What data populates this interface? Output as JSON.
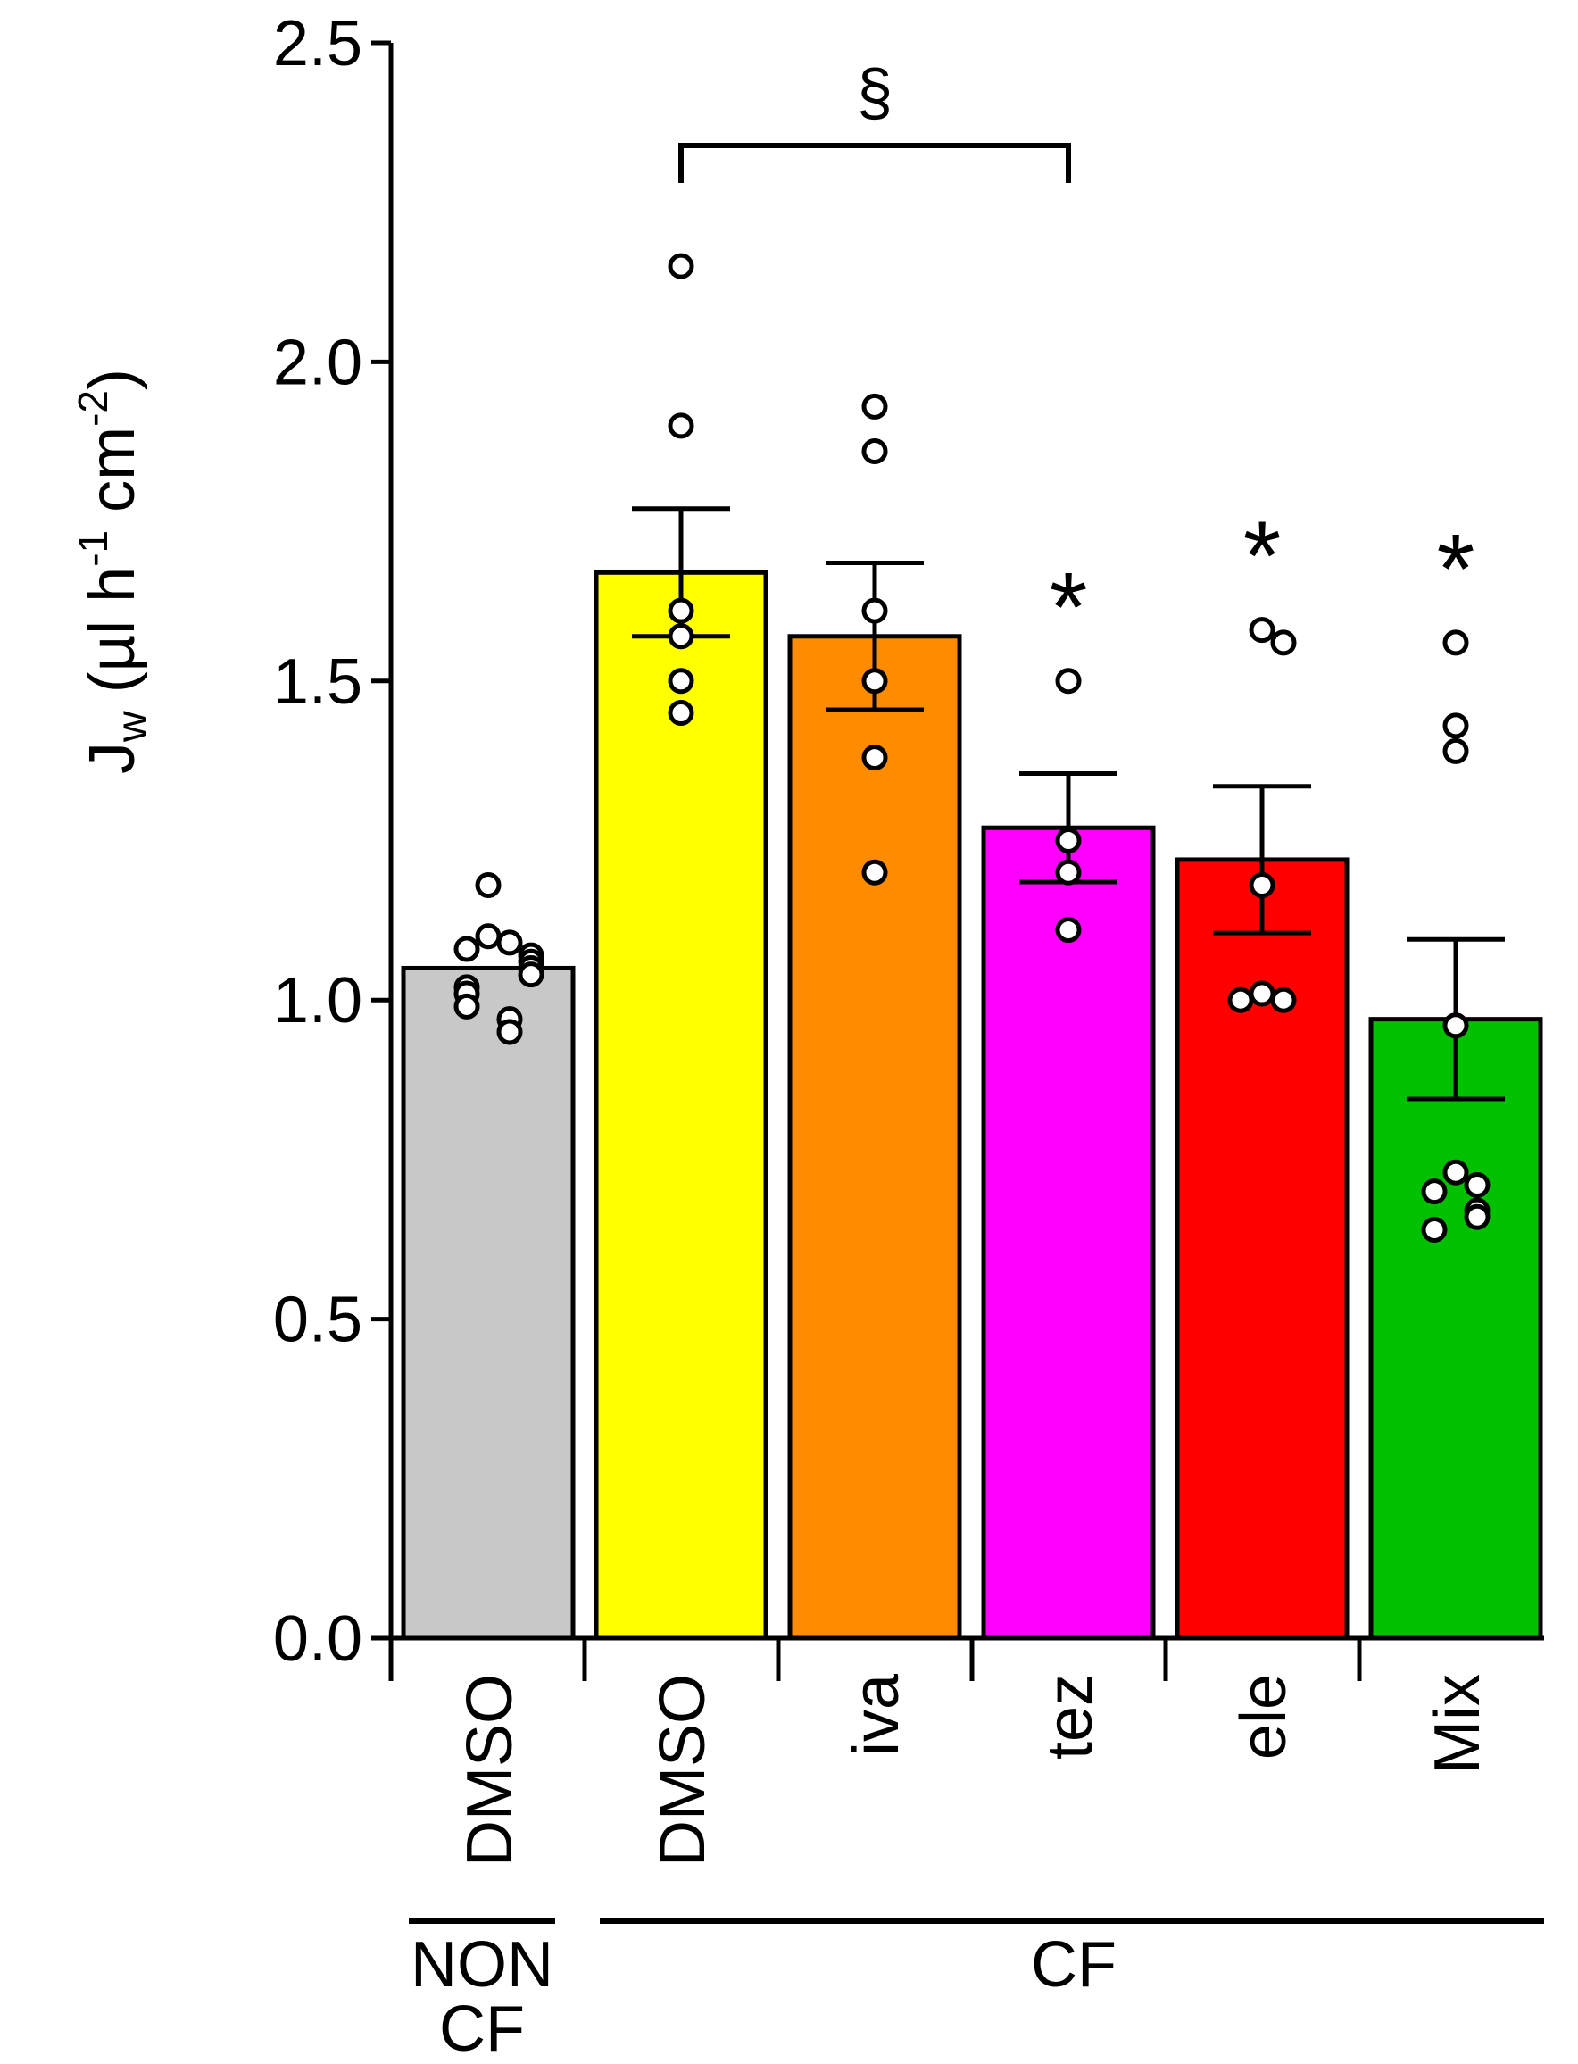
{
  "chart_data": {
    "type": "bar",
    "title": "",
    "ylabel": {
      "main": "J",
      "subscript": "w",
      "unit_open": " (µl h",
      "exp1": "-1",
      "unit_mid": " cm",
      "exp2": "-2",
      "unit_close": ")"
    },
    "ylim": [
      0,
      2.5
    ],
    "yticks": [
      "0.0",
      "0.5",
      "1.0",
      "1.5",
      "2.0",
      "2.5"
    ],
    "categories": [
      "DMSO",
      "DMSO",
      "iva",
      "tez",
      "ele",
      "Mix"
    ],
    "groups": [
      {
        "label_lines": [
          "NON",
          "CF"
        ],
        "categories": [
          0
        ]
      },
      {
        "label_lines": [
          "CF"
        ],
        "categories": [
          1,
          2,
          3,
          4,
          5
        ]
      }
    ],
    "values": [
      1.05,
      1.67,
      1.57,
      1.27,
      1.22,
      0.97
    ],
    "errors": [
      0.0,
      0.1,
      0.115,
      0.085,
      0.115,
      0.125
    ],
    "colors": [
      "#c8c8c8",
      "#ffff00",
      "#ff8c00",
      "#ff00ff",
      "#ff0000",
      "#00c000"
    ],
    "points": [
      [
        1.18,
        1.1,
        1.09,
        1.08,
        1.07,
        1.06,
        1.05,
        1.04,
        1.02,
        1.01,
        0.99,
        0.97,
        0.95
      ],
      [
        2.15,
        1.9,
        1.61,
        1.57,
        1.5,
        1.45
      ],
      [
        1.93,
        1.86,
        1.61,
        1.5,
        1.38,
        1.2
      ],
      [
        1.5,
        1.25,
        1.2,
        1.11
      ],
      [
        1.58,
        1.56,
        1.18,
        1.01,
        1.0,
        1.0
      ],
      [
        1.56,
        1.43,
        1.39,
        0.96,
        0.73,
        0.71,
        0.7,
        0.67,
        0.66,
        0.64
      ]
    ],
    "significance": [
      "",
      "",
      "",
      "*",
      "*",
      "*"
    ],
    "bracket": {
      "from": 1,
      "to": 3,
      "label": "§"
    }
  }
}
